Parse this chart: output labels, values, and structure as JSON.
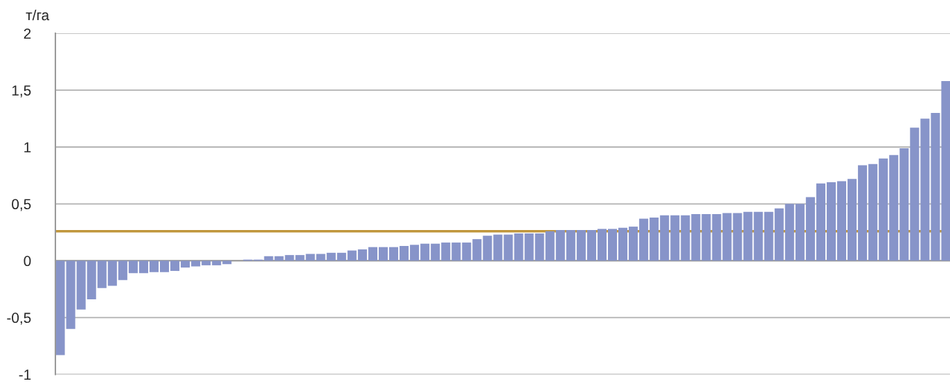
{
  "chart_data": {
    "type": "bar",
    "ylabel": "т/га",
    "categories": [
      null,
      null,
      null,
      null,
      null,
      null,
      null,
      null,
      null,
      null,
      null,
      null,
      null,
      null,
      null,
      null,
      null,
      null,
      null,
      null,
      null,
      null,
      null,
      null,
      null,
      null,
      null,
      null,
      null,
      null,
      null,
      null,
      null,
      null,
      null,
      null,
      null,
      null,
      null,
      null,
      null,
      null,
      null,
      null,
      null,
      null,
      null,
      null,
      null,
      null,
      null,
      null,
      null,
      null,
      null,
      null,
      null,
      null,
      null,
      null,
      null,
      null,
      null,
      null,
      null,
      null,
      null,
      null,
      null,
      null,
      null,
      null,
      null,
      null,
      null,
      null,
      null,
      null,
      null,
      null,
      null,
      null,
      null,
      null,
      null,
      null
    ],
    "values": [
      -0.83,
      -0.6,
      -0.43,
      -0.34,
      -0.24,
      -0.22,
      -0.17,
      -0.11,
      -0.11,
      -0.1,
      -0.1,
      -0.09,
      -0.06,
      -0.05,
      -0.04,
      -0.04,
      -0.03,
      0,
      0.01,
      0.01,
      0.04,
      0.04,
      0.05,
      0.05,
      0.06,
      0.06,
      0.07,
      0.07,
      0.09,
      0.1,
      0.12,
      0.12,
      0.12,
      0.13,
      0.14,
      0.15,
      0.15,
      0.16,
      0.16,
      0.16,
      0.19,
      0.22,
      0.23,
      0.23,
      0.24,
      0.24,
      0.24,
      0.26,
      0.27,
      0.27,
      0.27,
      0.27,
      0.28,
      0.28,
      0.29,
      0.3,
      0.37,
      0.38,
      0.4,
      0.4,
      0.4,
      0.41,
      0.41,
      0.41,
      0.42,
      0.42,
      0.43,
      0.43,
      0.43,
      0.46,
      0.5,
      0.5,
      0.56,
      0.68,
      0.69,
      0.7,
      0.72,
      0.84,
      0.85,
      0.9,
      0.93,
      0.99,
      1.17,
      1.25,
      1.3,
      1.58
    ],
    "color": "#8794c9",
    "ylim": [
      -1,
      2
    ],
    "yticks": [
      {
        "value": -1,
        "label": "-1"
      },
      {
        "value": -0.5,
        "label": "-0,5"
      },
      {
        "value": 0,
        "label": "0"
      },
      {
        "value": 0.5,
        "label": "0,5"
      },
      {
        "value": 1,
        "label": "1"
      },
      {
        "value": 1.5,
        "label": "1,5"
      },
      {
        "value": 2,
        "label": "2"
      }
    ],
    "grid": "y",
    "ref_lines": [
      {
        "axis": "y",
        "value": 0.26,
        "color": "#c0963c"
      }
    ]
  }
}
